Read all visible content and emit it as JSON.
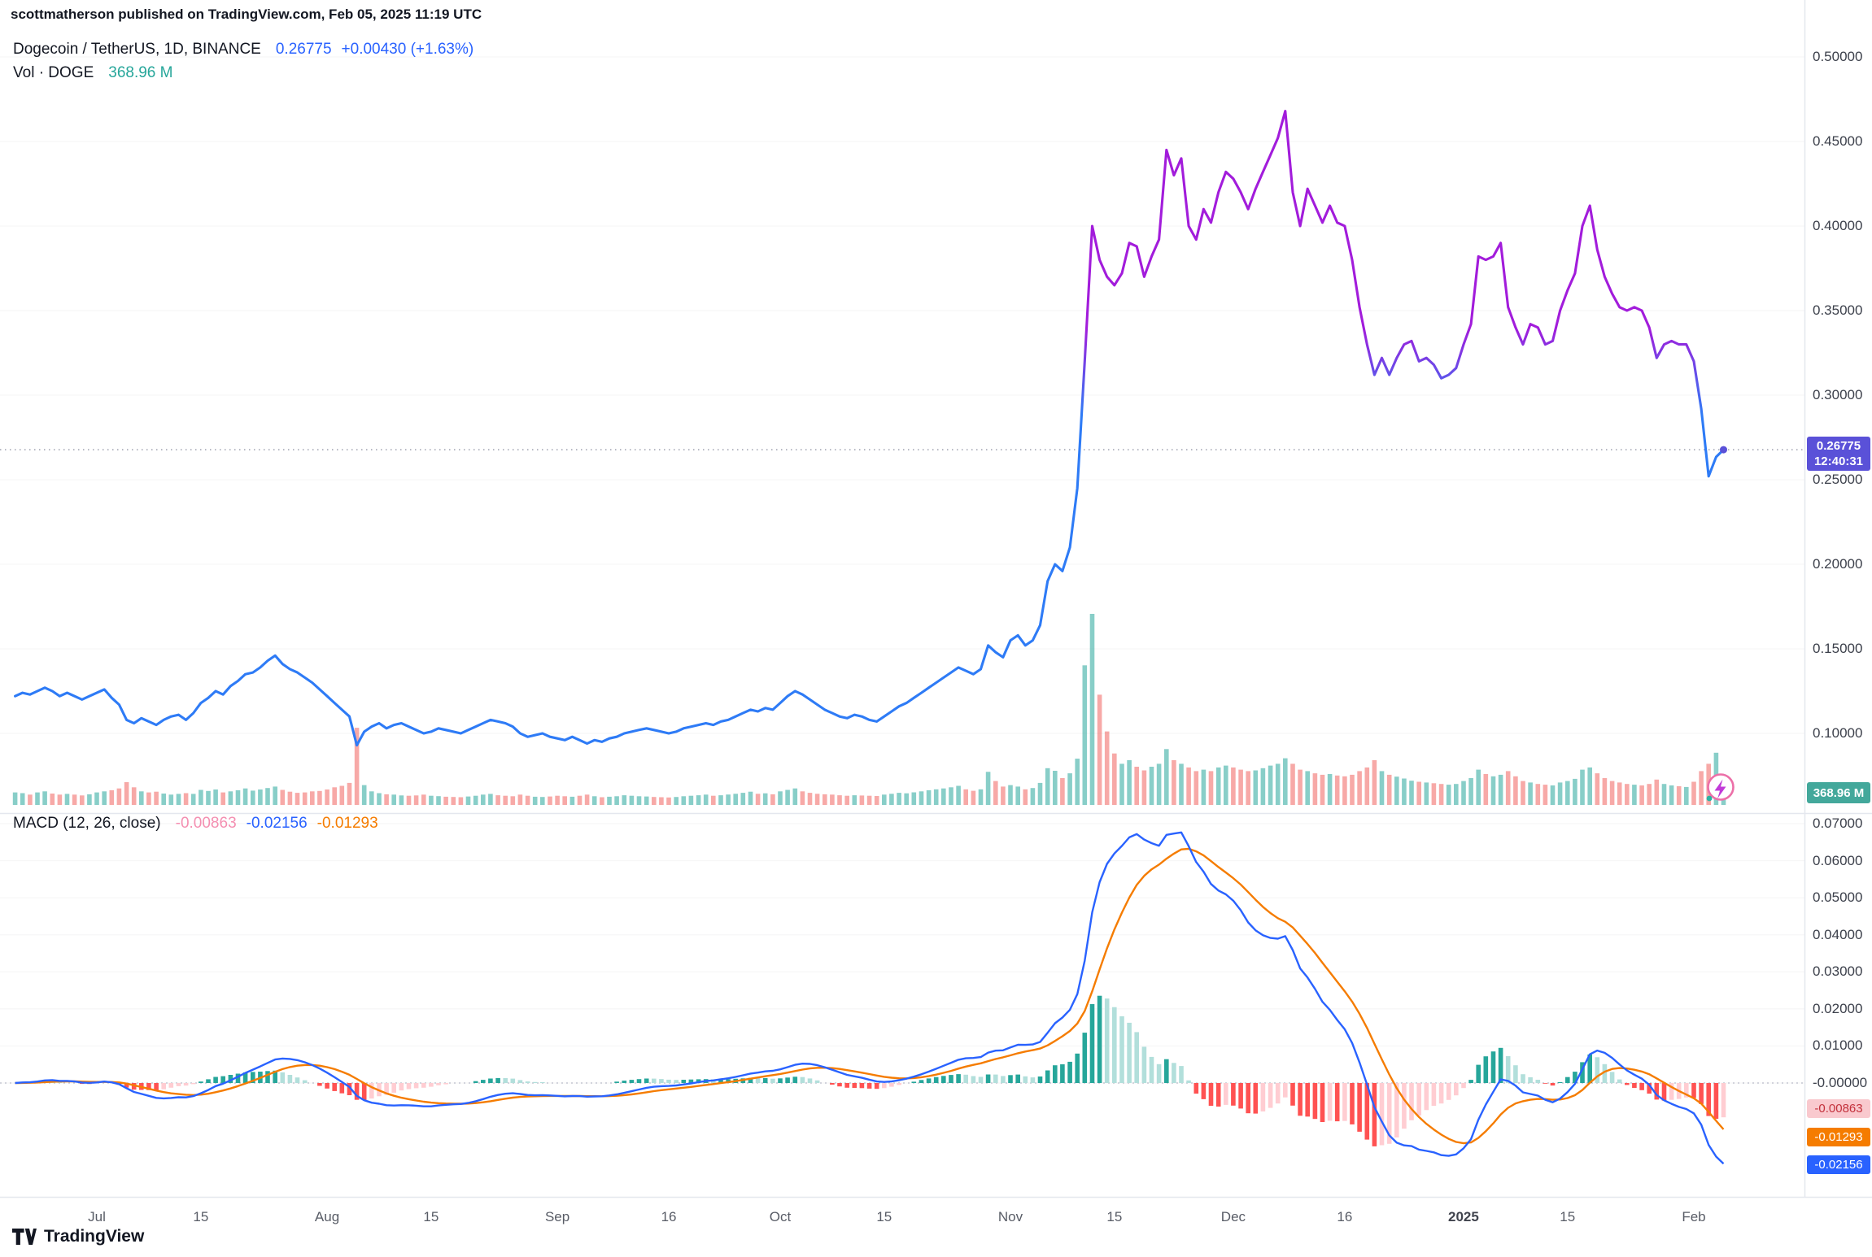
{
  "header": {
    "publish_line": "scottmatherson published on TradingView.com, Feb 05, 2025 11:19 UTC"
  },
  "legend": {
    "symbol": "Dogecoin / TetherUS, 1D, BINANCE",
    "price": "0.26775",
    "change": "+0.00430 (+1.63%)",
    "vol_label": "Vol · DOGE",
    "vol_value": "368.96 M"
  },
  "macd_legend": {
    "label": "MACD (12, 26, close)",
    "hist": "-0.00863",
    "macd": "-0.02156",
    "signal": "-0.01293"
  },
  "badges": {
    "price": "0.26775",
    "countdown": "12:40:31",
    "volume": "368.96 M",
    "macd_hist": "-0.00863",
    "macd_signal": "-0.01293",
    "macd_line": "-0.02156"
  },
  "footer": {
    "brand": "TradingView"
  },
  "colors": {
    "line_low": "#2E7BF6",
    "line_high": "#A21CDB",
    "accent_blue": "#2962FF",
    "teal": "#26A69A",
    "vol_up": "#26A69A",
    "vol_down": "#EF5350",
    "macd_line": "#2962FF",
    "signal_line": "#F57C00",
    "hist_pos_rise": "#26A69A",
    "hist_pos_fall": "#B2DFDB",
    "hist_neg_fall": "#FF5252",
    "hist_neg_rise": "#FFCDD2",
    "price_badge_bg": "#5A51D8",
    "vol_badge_bg": "#43A89B",
    "hist_badge_bg": "#F9C9CE",
    "hist_badge_text": "#C3313C",
    "signal_badge_bg": "#F57C00",
    "macd_badge_bg": "#2962FF",
    "legend_hist_value": "#F48FB1",
    "grid": "rgba(42,46,57,0.05)",
    "separator": "#E4E7EE"
  },
  "price_axis": [
    {
      "v": 0.5,
      "label": "0.50000"
    },
    {
      "v": 0.45,
      "label": "0.45000"
    },
    {
      "v": 0.4,
      "label": "0.40000"
    },
    {
      "v": 0.35,
      "label": "0.35000"
    },
    {
      "v": 0.3,
      "label": "0.30000"
    },
    {
      "v": 0.25,
      "label": "0.25000"
    },
    {
      "v": 0.2,
      "label": "0.20000"
    },
    {
      "v": 0.15,
      "label": "0.15000"
    },
    {
      "v": 0.1,
      "label": "0.10000"
    }
  ],
  "macd_axis": [
    {
      "v": 0.07,
      "label": "0.07000"
    },
    {
      "v": 0.06,
      "label": "0.06000"
    },
    {
      "v": 0.05,
      "label": "0.05000"
    },
    {
      "v": 0.04,
      "label": "0.04000"
    },
    {
      "v": 0.03,
      "label": "0.03000"
    },
    {
      "v": 0.02,
      "label": "0.02000"
    },
    {
      "v": 0.01,
      "label": "0.01000"
    },
    {
      "v": 0.0,
      "label": "-0.00000"
    }
  ],
  "time_axis": [
    {
      "day": 11,
      "label": "Jul"
    },
    {
      "day": 25,
      "label": "15"
    },
    {
      "day": 42,
      "label": "Aug"
    },
    {
      "day": 56,
      "label": "15"
    },
    {
      "day": 73,
      "label": "Sep"
    },
    {
      "day": 88,
      "label": "16"
    },
    {
      "day": 103,
      "label": "Oct"
    },
    {
      "day": 117,
      "label": "15"
    },
    {
      "day": 134,
      "label": "Nov"
    },
    {
      "day": 148,
      "label": "15"
    },
    {
      "day": 164,
      "label": "Dec"
    },
    {
      "day": 179,
      "label": "16"
    },
    {
      "day": 195,
      "label": "2025"
    },
    {
      "day": 209,
      "label": "15"
    },
    {
      "day": 226,
      "label": "Feb"
    }
  ],
  "chart_data": {
    "type": "line",
    "symbol": "Dogecoin / TetherUS (BINANCE)",
    "timeframe": "1D",
    "start_date": "2024-06-20",
    "end_date": "2025-02-05",
    "current_price": 0.26775,
    "price_range_visible": [
      0.1,
      0.5
    ],
    "macd_range_visible": [
      -0.029,
      0.07
    ],
    "macd_params": {
      "fast": 12,
      "slow": 26,
      "signal": 9
    },
    "volume_max_scale_m": 2600,
    "last_volume_m": 368.96,
    "close": [
      0.122,
      0.124,
      0.123,
      0.125,
      0.127,
      0.125,
      0.122,
      0.124,
      0.122,
      0.12,
      0.122,
      0.124,
      0.126,
      0.121,
      0.117,
      0.108,
      0.106,
      0.109,
      0.107,
      0.105,
      0.108,
      0.11,
      0.111,
      0.108,
      0.112,
      0.118,
      0.121,
      0.125,
      0.123,
      0.128,
      0.131,
      0.135,
      0.136,
      0.139,
      0.143,
      0.146,
      0.141,
      0.138,
      0.136,
      0.133,
      0.13,
      0.126,
      0.122,
      0.118,
      0.114,
      0.11,
      0.093,
      0.101,
      0.104,
      0.106,
      0.103,
      0.105,
      0.106,
      0.104,
      0.102,
      0.1,
      0.101,
      0.103,
      0.102,
      0.101,
      0.1,
      0.102,
      0.104,
      0.106,
      0.108,
      0.107,
      0.106,
      0.104,
      0.1,
      0.098,
      0.099,
      0.1,
      0.098,
      0.097,
      0.096,
      0.098,
      0.096,
      0.094,
      0.096,
      0.095,
      0.097,
      0.098,
      0.1,
      0.101,
      0.102,
      0.103,
      0.102,
      0.101,
      0.1,
      0.101,
      0.103,
      0.104,
      0.105,
      0.106,
      0.105,
      0.107,
      0.108,
      0.11,
      0.112,
      0.114,
      0.113,
      0.115,
      0.114,
      0.118,
      0.122,
      0.125,
      0.123,
      0.12,
      0.117,
      0.114,
      0.112,
      0.11,
      0.109,
      0.111,
      0.11,
      0.108,
      0.107,
      0.11,
      0.113,
      0.116,
      0.118,
      0.121,
      0.124,
      0.127,
      0.13,
      0.133,
      0.136,
      0.139,
      0.137,
      0.135,
      0.138,
      0.152,
      0.148,
      0.145,
      0.155,
      0.158,
      0.152,
      0.155,
      0.164,
      0.19,
      0.2,
      0.196,
      0.21,
      0.245,
      0.32,
      0.4,
      0.38,
      0.37,
      0.365,
      0.372,
      0.39,
      0.388,
      0.37,
      0.382,
      0.392,
      0.445,
      0.43,
      0.44,
      0.4,
      0.392,
      0.41,
      0.402,
      0.42,
      0.432,
      0.428,
      0.42,
      0.41,
      0.422,
      0.432,
      0.442,
      0.452,
      0.468,
      0.42,
      0.4,
      0.422,
      0.412,
      0.402,
      0.412,
      0.402,
      0.4,
      0.38,
      0.352,
      0.33,
      0.312,
      0.322,
      0.312,
      0.322,
      0.33,
      0.332,
      0.32,
      0.322,
      0.318,
      0.31,
      0.312,
      0.316,
      0.33,
      0.342,
      0.382,
      0.38,
      0.382,
      0.39,
      0.352,
      0.34,
      0.33,
      0.342,
      0.34,
      0.33,
      0.332,
      0.35,
      0.362,
      0.372,
      0.4,
      0.412,
      0.386,
      0.37,
      0.36,
      0.352,
      0.35,
      0.352,
      0.35,
      0.34,
      0.322,
      0.33,
      0.332,
      0.33,
      0.33,
      0.32,
      0.292,
      0.252,
      0.26345,
      0.26775
    ],
    "volume_m": [
      170,
      160,
      140,
      170,
      185,
      155,
      140,
      150,
      140,
      130,
      145,
      170,
      185,
      200,
      225,
      310,
      240,
      185,
      170,
      180,
      155,
      140,
      150,
      160,
      150,
      205,
      190,
      210,
      170,
      185,
      200,
      225,
      195,
      210,
      230,
      250,
      205,
      180,
      165,
      170,
      185,
      190,
      210,
      240,
      260,
      300,
      1050,
      270,
      185,
      160,
      145,
      140,
      130,
      125,
      130,
      140,
      125,
      120,
      112,
      108,
      105,
      115,
      125,
      140,
      150,
      132,
      125,
      118,
      140,
      125,
      112,
      108,
      115,
      125,
      118,
      112,
      125,
      140,
      118,
      105,
      112,
      118,
      132,
      125,
      118,
      115,
      108,
      105,
      102,
      108,
      118,
      125,
      132,
      140,
      125,
      132,
      142,
      152,
      165,
      180,
      152,
      158,
      145,
      185,
      205,
      225,
      185,
      165,
      152,
      145,
      140,
      132,
      125,
      132,
      128,
      125,
      122,
      140,
      152,
      165,
      158,
      172,
      185,
      200,
      212,
      225,
      240,
      260,
      212,
      192,
      212,
      450,
      325,
      250,
      270,
      250,
      212,
      230,
      300,
      500,
      465,
      365,
      430,
      630,
      1900,
      2600,
      1500,
      1000,
      700,
      560,
      610,
      520,
      470,
      520,
      560,
      760,
      610,
      560,
      510,
      460,
      480,
      460,
      510,
      535,
      510,
      480,
      460,
      470,
      500,
      535,
      560,
      635,
      560,
      480,
      460,
      430,
      410,
      420,
      400,
      390,
      410,
      460,
      510,
      610,
      460,
      410,
      385,
      360,
      330,
      315,
      305,
      295,
      285,
      275,
      285,
      325,
      365,
      480,
      420,
      390,
      410,
      460,
      390,
      325,
      305,
      285,
      275,
      265,
      305,
      325,
      355,
      480,
      510,
      430,
      365,
      325,
      305,
      285,
      275,
      265,
      285,
      345,
      285,
      265,
      255,
      245,
      315,
      460,
      560,
      710,
      369
    ]
  }
}
